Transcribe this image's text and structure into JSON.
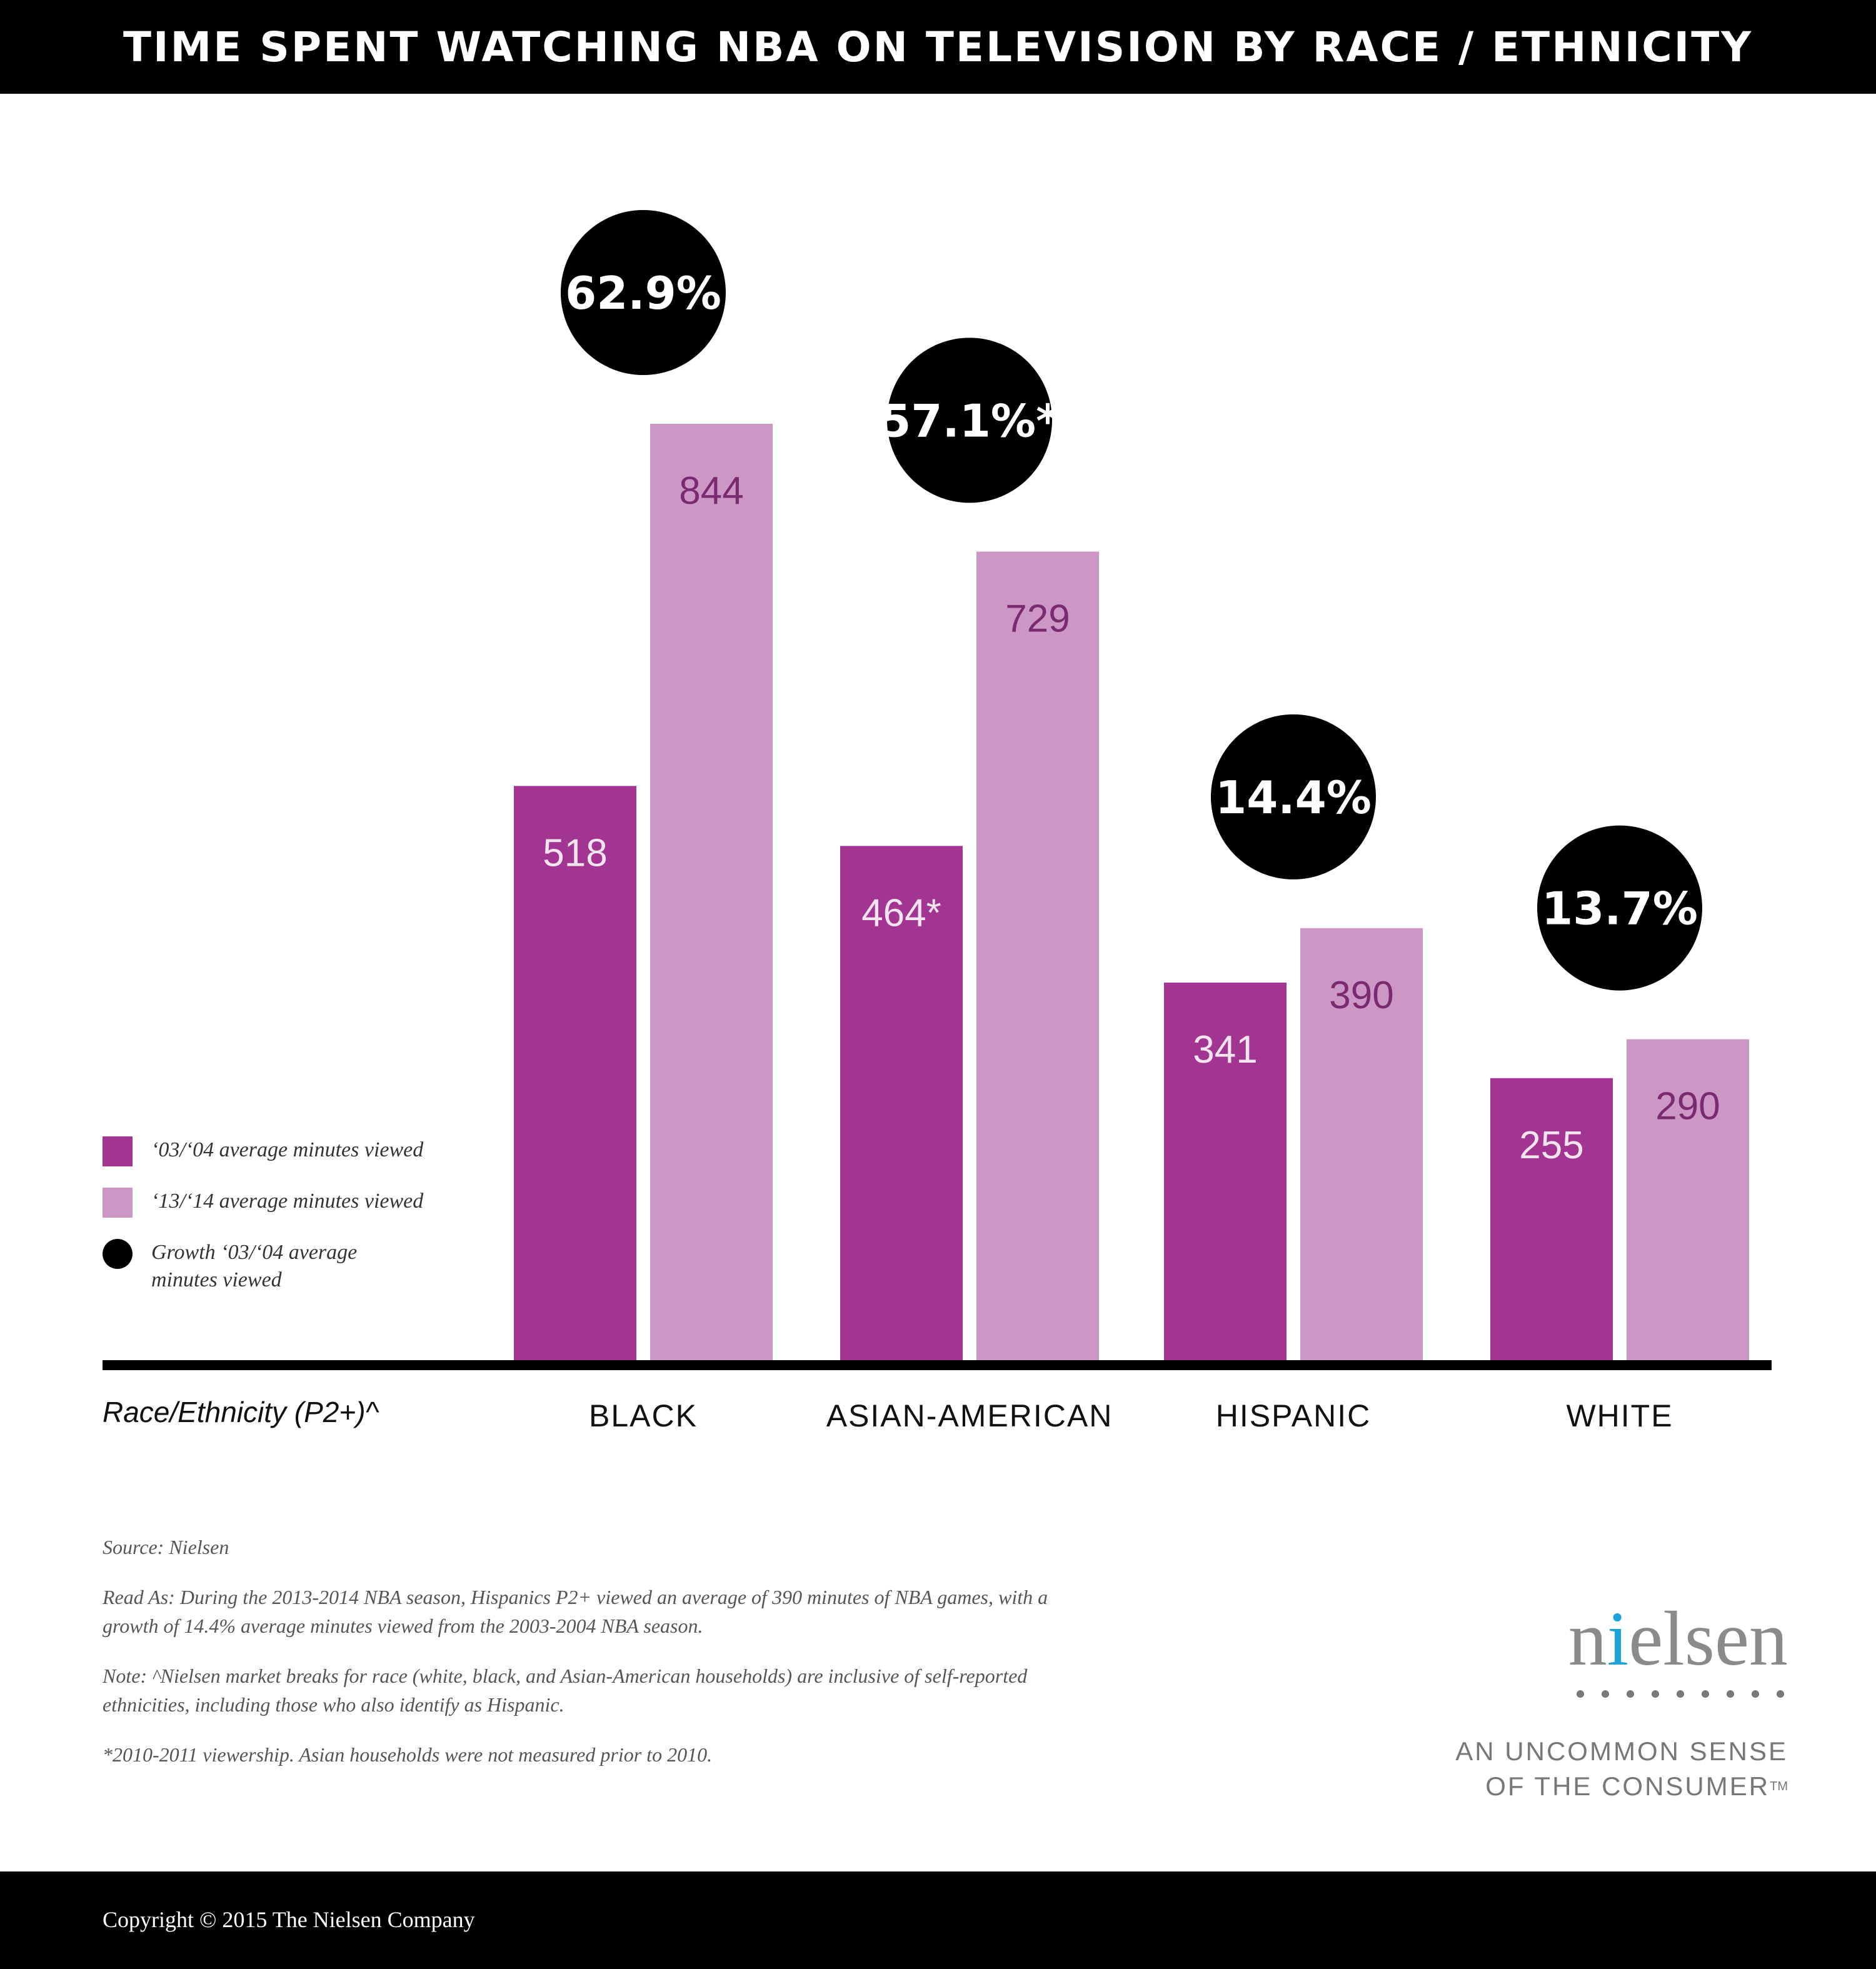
{
  "header": {
    "title": "TIME SPENT WATCHING NBA ON TELEVISION BY RACE / ETHNICITY"
  },
  "chart_data": {
    "type": "bar",
    "categories": [
      "BLACK",
      "ASIAN-AMERICAN",
      "HISPANIC",
      "WHITE"
    ],
    "series": [
      {
        "name": "‘03/‘04 average minutes viewed",
        "values": [
          518,
          464,
          341,
          255
        ],
        "labels": [
          "518",
          "464*",
          "341",
          "255"
        ],
        "color": "#a33592",
        "label_color": "#f3e4f0"
      },
      {
        "name": "‘13/‘14 average minutes viewed",
        "values": [
          844,
          729,
          390,
          290
        ],
        "labels": [
          "844",
          "729",
          "390",
          "290"
        ],
        "color": "#cc96c5",
        "label_color": "#7a2a6e"
      }
    ],
    "growth": {
      "name": "Growth ‘03/‘04 average minutes viewed",
      "values": [
        62.9,
        57.1,
        14.4,
        13.7
      ],
      "labels": [
        "62.9%",
        "57.1%*",
        "14.4%",
        "13.7%"
      ],
      "color": "#000000"
    },
    "xlabel": "Race/Ethnicity (P2+)^",
    "ylim": [
      0,
      844
    ],
    "grid": false,
    "legend_position": "left"
  },
  "legend": {
    "items": [
      {
        "label": "‘03/‘04 average minutes viewed"
      },
      {
        "label": "‘13/‘14 average minutes viewed"
      },
      {
        "label": "Growth ‘03/‘04 average minutes viewed"
      }
    ]
  },
  "notes": {
    "source": "Source: Nielsen",
    "read_as": "Read As: During the 2013-2014 NBA season, Hispanics P2+ viewed an average of 390 minutes of NBA games, with a  growth of 14.4% average minutes viewed from the 2003-2004 NBA season.",
    "note": "Note: ^Nielsen market breaks for race (white, black, and Asian-American households) are inclusive of self-reported ethnicities, including those who also identify as Hispanic.",
    "asterisk": "*2010-2011 viewership. Asian households were not measured prior to 2010."
  },
  "brand": {
    "logo_first": "n",
    "logo_accent": "i",
    "logo_rest": "elsen",
    "tagline_line1": "AN UNCOMMON SENSE",
    "tagline_line2": "OF THE CONSUMER",
    "trademark": "TM"
  },
  "footer": {
    "copyright": "Copyright © 2015 The Nielsen Company"
  },
  "colors": {
    "dark_bar": "#a33592",
    "light_bar": "#cc96c5",
    "growth_circle": "#000000",
    "brand_accent": "#1aa3d9"
  }
}
